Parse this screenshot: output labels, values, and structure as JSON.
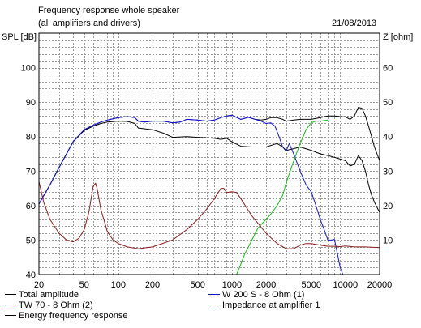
{
  "header": {
    "title": "Frequency response whole speaker",
    "subtitle": "(all amplifiers and drivers)",
    "date": "21/08/2013"
  },
  "chart_data": {
    "type": "line",
    "title": "Frequency response whole speaker",
    "subtitle": "(all amplifiers and drivers)",
    "ylabel": "SPL [dB]",
    "y2label": "Z [ohm]",
    "xscale": "log",
    "xlim": [
      20,
      20000
    ],
    "ylim": [
      40,
      110
    ],
    "y2lim": [
      0,
      70
    ],
    "grid": true,
    "x_ticks": [
      {
        "v": 20,
        "label": "20"
      },
      {
        "v": 50,
        "label": "50"
      },
      {
        "v": 100,
        "label": "100"
      },
      {
        "v": 200,
        "label": "200"
      },
      {
        "v": 500,
        "label": "500"
      },
      {
        "v": 1000,
        "label": "1000"
      },
      {
        "v": 2000,
        "label": "2000"
      },
      {
        "v": 5000,
        "label": "5000"
      },
      {
        "v": 10000,
        "label": "10000"
      },
      {
        "v": 20000,
        "label": "20000"
      }
    ],
    "y_ticks": [
      40,
      50,
      60,
      70,
      80,
      90,
      100
    ],
    "y2_ticks": [
      10,
      20,
      30,
      40,
      50,
      60
    ],
    "series": [
      {
        "name": "Total amplitude",
        "color": "#000000",
        "axis": "left",
        "points": [
          [
            20,
            60.5
          ],
          [
            25,
            66
          ],
          [
            30,
            71
          ],
          [
            35,
            75
          ],
          [
            40,
            78.5
          ],
          [
            50,
            82
          ],
          [
            60,
            83.3
          ],
          [
            70,
            84.2
          ],
          [
            80,
            84.8
          ],
          [
            100,
            85.5
          ],
          [
            120,
            85.8
          ],
          [
            140,
            85.5
          ],
          [
            150,
            84.5
          ],
          [
            170,
            84.2
          ],
          [
            200,
            84.5
          ],
          [
            250,
            84.5
          ],
          [
            300,
            84
          ],
          [
            350,
            84.2
          ],
          [
            400,
            85
          ],
          [
            500,
            84.8
          ],
          [
            600,
            84.5
          ],
          [
            700,
            84.8
          ],
          [
            800,
            85.5
          ],
          [
            900,
            86
          ],
          [
            1000,
            86.2
          ],
          [
            1200,
            85
          ],
          [
            1400,
            85.6
          ],
          [
            1600,
            85
          ],
          [
            1800,
            84.8
          ],
          [
            2000,
            85
          ],
          [
            2200,
            85.5
          ],
          [
            2500,
            85.5
          ],
          [
            2800,
            85
          ],
          [
            3000,
            84.5
          ],
          [
            3500,
            84.8
          ],
          [
            4000,
            85
          ],
          [
            5000,
            85
          ],
          [
            6000,
            85.5
          ],
          [
            7000,
            86
          ],
          [
            8000,
            86
          ],
          [
            9000,
            85.8
          ],
          [
            10000,
            85.7
          ],
          [
            11000,
            85
          ],
          [
            12000,
            86
          ],
          [
            13000,
            88.5
          ],
          [
            14000,
            88.2
          ],
          [
            15000,
            86
          ],
          [
            16000,
            83
          ],
          [
            17000,
            80
          ],
          [
            18000,
            77
          ],
          [
            20000,
            73
          ]
        ]
      },
      {
        "name": "Energy frequency response",
        "color": "#000000",
        "axis": "left",
        "points": [
          [
            20,
            60.5
          ],
          [
            25,
            66
          ],
          [
            30,
            71
          ],
          [
            35,
            75
          ],
          [
            40,
            78.5
          ],
          [
            50,
            81.8
          ],
          [
            60,
            83
          ],
          [
            70,
            83.8
          ],
          [
            80,
            84.2
          ],
          [
            100,
            84.5
          ],
          [
            120,
            84.4
          ],
          [
            140,
            83.8
          ],
          [
            150,
            82.5
          ],
          [
            200,
            82
          ],
          [
            250,
            81
          ],
          [
            300,
            79.8
          ],
          [
            400,
            80
          ],
          [
            500,
            79.8
          ],
          [
            700,
            79.5
          ],
          [
            800,
            79.2
          ],
          [
            900,
            79.5
          ],
          [
            1000,
            78.5
          ],
          [
            1200,
            77.2
          ],
          [
            1500,
            77
          ],
          [
            2000,
            77
          ],
          [
            2500,
            78
          ],
          [
            2800,
            77
          ],
          [
            3000,
            76
          ],
          [
            3500,
            76.5
          ],
          [
            4000,
            77
          ],
          [
            5000,
            76
          ],
          [
            6000,
            75
          ],
          [
            7000,
            74.5
          ],
          [
            8000,
            74
          ],
          [
            9000,
            73.5
          ],
          [
            10000,
            73
          ],
          [
            11000,
            71.5
          ],
          [
            12000,
            72
          ],
          [
            13000,
            74.5
          ],
          [
            14000,
            73
          ],
          [
            15000,
            70
          ],
          [
            16000,
            66
          ],
          [
            17000,
            63
          ],
          [
            18000,
            61
          ],
          [
            20000,
            58
          ]
        ]
      },
      {
        "name": "W 200 S - 8 Ohm (1)",
        "color": "#1010e0",
        "axis": "left",
        "points": [
          [
            20,
            60.5
          ],
          [
            25,
            66
          ],
          [
            30,
            71
          ],
          [
            35,
            75
          ],
          [
            40,
            78.5
          ],
          [
            50,
            82
          ],
          [
            60,
            83.3
          ],
          [
            70,
            84.2
          ],
          [
            80,
            84.8
          ],
          [
            100,
            85.5
          ],
          [
            120,
            85.8
          ],
          [
            140,
            85.5
          ],
          [
            150,
            84.5
          ],
          [
            170,
            84.2
          ],
          [
            200,
            84.5
          ],
          [
            250,
            84.5
          ],
          [
            300,
            84
          ],
          [
            350,
            84.2
          ],
          [
            400,
            85
          ],
          [
            500,
            84.8
          ],
          [
            600,
            84.5
          ],
          [
            700,
            84.8
          ],
          [
            800,
            85.5
          ],
          [
            900,
            86
          ],
          [
            1000,
            86.2
          ],
          [
            1200,
            85
          ],
          [
            1400,
            85.6
          ],
          [
            1600,
            85
          ],
          [
            1800,
            84.5
          ],
          [
            2000,
            83.8
          ],
          [
            2200,
            84
          ],
          [
            2400,
            83
          ],
          [
            2600,
            80
          ],
          [
            2800,
            77
          ],
          [
            3000,
            75.8
          ],
          [
            3200,
            78
          ],
          [
            3500,
            75
          ],
          [
            4000,
            70
          ],
          [
            4500,
            66
          ],
          [
            5000,
            64
          ],
          [
            5500,
            60
          ],
          [
            6000,
            56
          ],
          [
            6500,
            53
          ],
          [
            7000,
            50
          ],
          [
            7500,
            50
          ],
          [
            8000,
            50.2
          ],
          [
            8500,
            46
          ],
          [
            9000,
            42
          ],
          [
            9500,
            40
          ]
        ]
      },
      {
        "name": "TW 70 - 8 Ohm (2)",
        "color": "#10c010",
        "axis": "left",
        "points": [
          [
            1100,
            40
          ],
          [
            1200,
            43
          ],
          [
            1300,
            46
          ],
          [
            1400,
            48
          ],
          [
            1500,
            50
          ],
          [
            1700,
            53.5
          ],
          [
            2000,
            56
          ],
          [
            2200,
            57.5
          ],
          [
            2500,
            60
          ],
          [
            2800,
            63
          ],
          [
            3000,
            66.5
          ],
          [
            3300,
            70.5
          ],
          [
            3600,
            74
          ],
          [
            4000,
            78
          ],
          [
            4500,
            82
          ],
          [
            5000,
            84
          ],
          [
            5500,
            84.5
          ],
          [
            6000,
            84.5
          ],
          [
            7000,
            84.8
          ]
        ]
      },
      {
        "name": "Impedance at amplifier 1",
        "color": "#8b1c1c",
        "axis": "right",
        "points": [
          [
            20,
            27
          ],
          [
            22,
            21
          ],
          [
            25,
            16
          ],
          [
            30,
            12
          ],
          [
            35,
            10
          ],
          [
            40,
            9.5
          ],
          [
            45,
            10.5
          ],
          [
            50,
            13
          ],
          [
            55,
            18
          ],
          [
            60,
            25.5
          ],
          [
            63,
            26.5
          ],
          [
            65,
            25
          ],
          [
            70,
            19
          ],
          [
            80,
            12.5
          ],
          [
            90,
            10
          ],
          [
            100,
            9
          ],
          [
            120,
            8
          ],
          [
            150,
            7.5
          ],
          [
            200,
            8
          ],
          [
            300,
            10
          ],
          [
            400,
            13
          ],
          [
            500,
            16
          ],
          [
            600,
            19
          ],
          [
            700,
            22
          ],
          [
            800,
            25
          ],
          [
            850,
            25
          ],
          [
            900,
            23.8
          ],
          [
            1000,
            24
          ],
          [
            1100,
            23.8
          ],
          [
            1200,
            22
          ],
          [
            1500,
            17
          ],
          [
            2000,
            12
          ],
          [
            2500,
            9
          ],
          [
            3000,
            7.5
          ],
          [
            3500,
            7.5
          ],
          [
            4000,
            8.5
          ],
          [
            4500,
            9
          ],
          [
            5000,
            9
          ],
          [
            6000,
            8.5
          ],
          [
            7000,
            8.2
          ],
          [
            8000,
            8.2
          ],
          [
            9000,
            8.1
          ],
          [
            10000,
            8.3
          ],
          [
            12000,
            8
          ],
          [
            15000,
            8
          ],
          [
            20000,
            7.8
          ]
        ]
      }
    ]
  },
  "legend": [
    {
      "label": "Total amplitude",
      "color": "#000000"
    },
    {
      "label": "W 200 S - 8 Ohm (1)",
      "color": "#1010e0"
    },
    {
      "label": "TW 70 - 8 Ohm (2)",
      "color": "#10c010"
    },
    {
      "label": "Impedance at amplifier 1",
      "color": "#8b1c1c"
    },
    {
      "label": "Energy frequency response",
      "color": "#000000"
    }
  ]
}
